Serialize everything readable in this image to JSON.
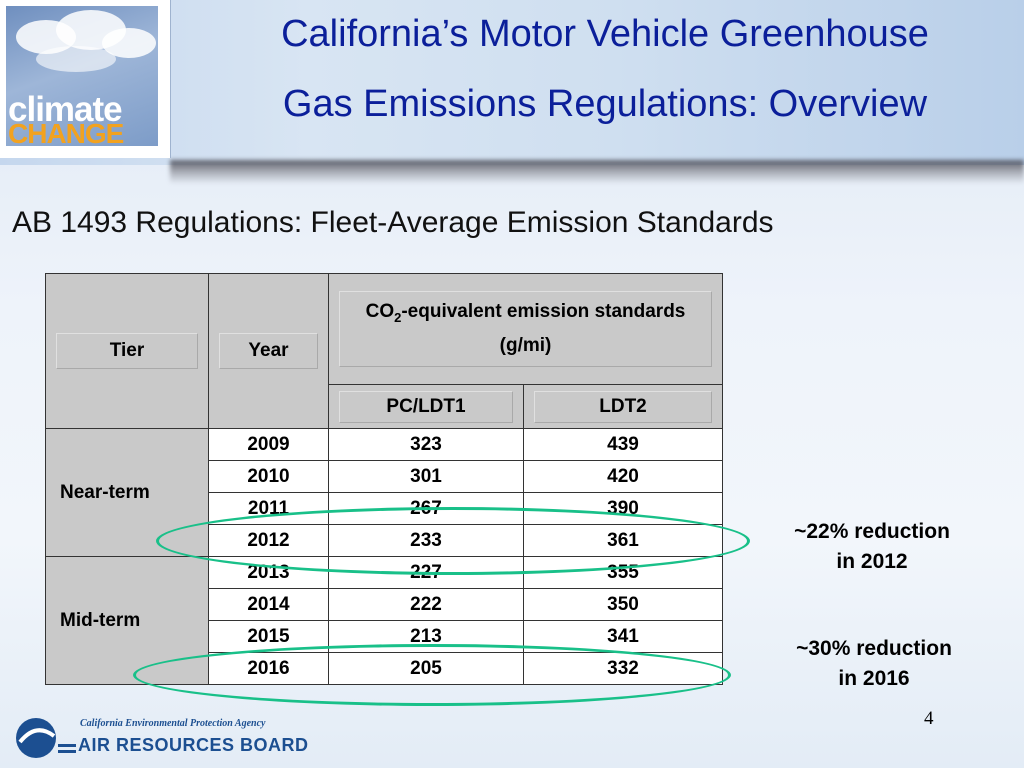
{
  "logo": {
    "word1": "climate",
    "word2": "CHANGE"
  },
  "title_line1": "California’s Motor Vehicle Greenhouse",
  "title_line2": "Gas Emissions Regulations: Overview",
  "subtitle": "AB 1493 Regulations: Fleet-Average Emission Standards",
  "table": {
    "header_tier": "Tier",
    "header_year": "Year",
    "header_co2_prefix": "CO",
    "header_co2_sub": "2",
    "header_co2_rest": "-equivalent emission standards (g/mi)",
    "header_pc": "PC/LDT1",
    "header_ldt2": "LDT2",
    "tier_near": "Near-term",
    "tier_mid": "Mid-term",
    "rows": [
      {
        "year": "2009",
        "pc": "323",
        "ldt2": "439"
      },
      {
        "year": "2010",
        "pc": "301",
        "ldt2": "420"
      },
      {
        "year": "2011",
        "pc": "267",
        "ldt2": "390"
      },
      {
        "year": "2012",
        "pc": "233",
        "ldt2": "361"
      },
      {
        "year": "2013",
        "pc": "227",
        "ldt2": "355"
      },
      {
        "year": "2014",
        "pc": "222",
        "ldt2": "350"
      },
      {
        "year": "2015",
        "pc": "213",
        "ldt2": "341"
      },
      {
        "year": "2016",
        "pc": "205",
        "ldt2": "332"
      }
    ]
  },
  "note_2012_line1": "~22% reduction",
  "note_2012_line2": "in 2012",
  "note_2016_line1": "~30% reduction",
  "note_2016_line2": "in 2016",
  "page_number": "4",
  "footer": {
    "agency": "California Environmental Protection Agency",
    "board": "AIR RESOURCES BOARD"
  },
  "colors": {
    "title": "#0b1f9a",
    "highlight": "#19c089",
    "footer": "#1c4f91"
  }
}
